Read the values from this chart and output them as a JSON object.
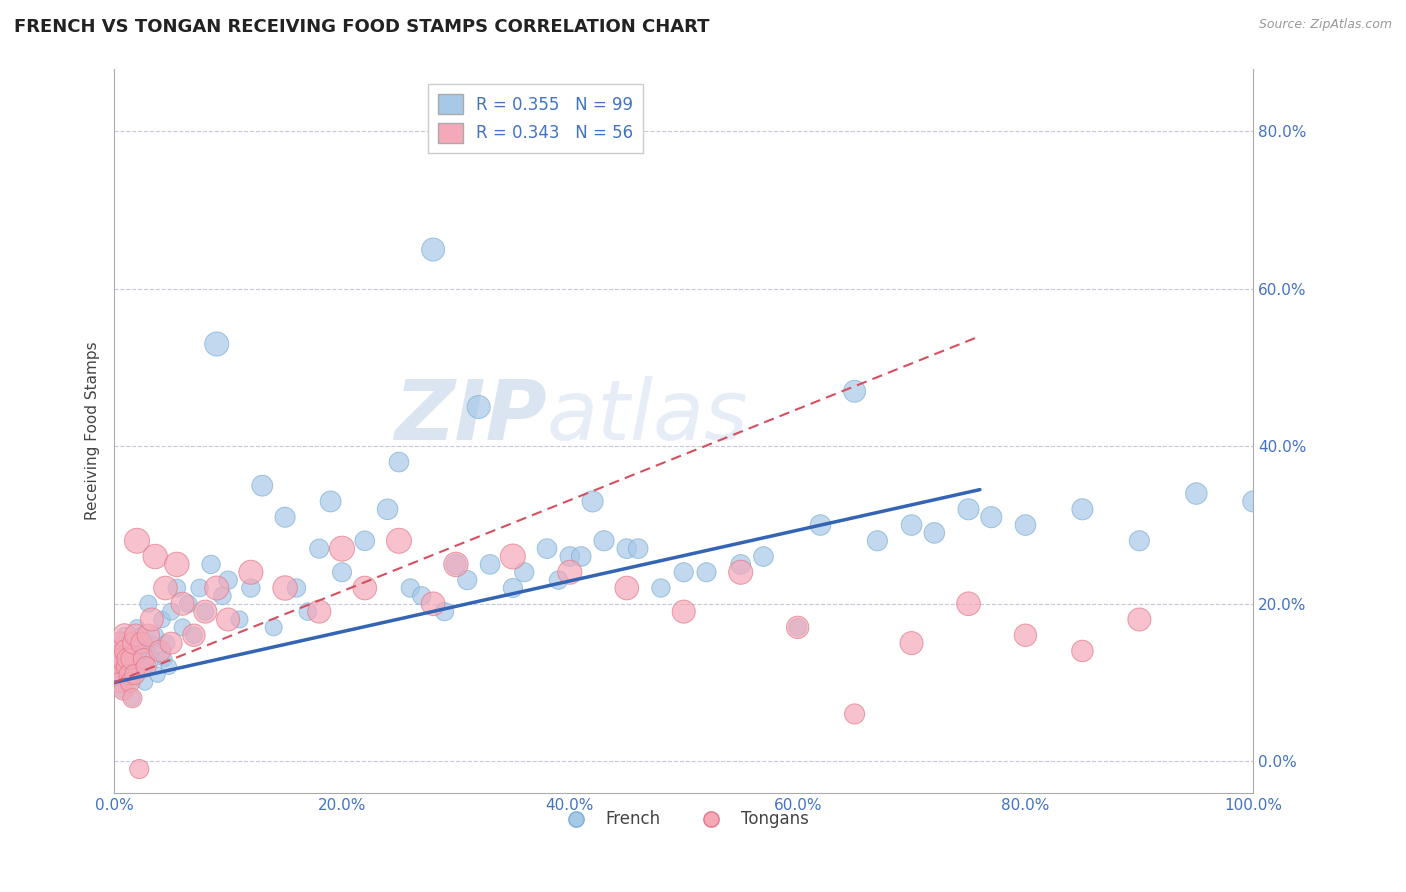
{
  "title": "FRENCH VS TONGAN RECEIVING FOOD STAMPS CORRELATION CHART",
  "source_text": "Source: ZipAtlas.com",
  "ylabel": "Receiving Food Stamps",
  "xlim": [
    0.0,
    1.0
  ],
  "ylim": [
    -0.04,
    0.88
  ],
  "xtick_vals": [
    0.0,
    0.2,
    0.4,
    0.6,
    0.8,
    1.0
  ],
  "xtick_labels": [
    "0.0%",
    "20.0%",
    "40.0%",
    "60.0%",
    "80.0%",
    "100.0%"
  ],
  "ytick_vals": [
    0.0,
    0.2,
    0.4,
    0.6,
    0.8
  ],
  "ytick_labels": [
    "0.0%",
    "20.0%",
    "40.0%",
    "60.0%",
    "80.0%"
  ],
  "french_color": "#a8c8e8",
  "french_edge": "#7aafd4",
  "tongan_color": "#f4a8b8",
  "tongan_edge": "#e07888",
  "french_R": 0.355,
  "french_N": 99,
  "tongan_R": 0.343,
  "tongan_N": 56,
  "french_line_color": "#3464b4",
  "tongan_line_color": "#d45060",
  "watermark_zip": "ZIP",
  "watermark_atlas": "atlas",
  "grid_color": "#c8c8d8",
  "french_line_x0": 0.0,
  "french_line_y0": 0.1,
  "french_line_x1": 0.76,
  "french_line_y1": 0.345,
  "tongan_line_x0": 0.0,
  "tongan_line_y0": 0.1,
  "tongan_line_x1": 0.76,
  "tongan_line_y1": 0.54,
  "french_scatter_x": [
    0.001,
    0.002,
    0.003,
    0.004,
    0.005,
    0.006,
    0.007,
    0.008,
    0.009,
    0.01,
    0.011,
    0.012,
    0.013,
    0.014,
    0.015,
    0.016,
    0.017,
    0.018,
    0.019,
    0.02,
    0.021,
    0.022,
    0.023,
    0.024,
    0.025,
    0.026,
    0.027,
    0.028,
    0.029,
    0.03,
    0.032,
    0.034,
    0.036,
    0.038,
    0.04,
    0.042,
    0.044,
    0.046,
    0.048,
    0.05,
    0.055,
    0.06,
    0.065,
    0.07,
    0.075,
    0.08,
    0.085,
    0.09,
    0.095,
    0.1,
    0.11,
    0.12,
    0.13,
    0.14,
    0.15,
    0.16,
    0.17,
    0.18,
    0.19,
    0.2,
    0.22,
    0.24,
    0.26,
    0.28,
    0.3,
    0.32,
    0.35,
    0.38,
    0.4,
    0.42,
    0.45,
    0.5,
    0.55,
    0.6,
    0.65,
    0.7,
    0.75,
    0.8,
    0.85,
    0.9,
    0.95,
    1.0,
    0.25,
    0.27,
    0.29,
    0.31,
    0.33,
    0.36,
    0.39,
    0.41,
    0.43,
    0.46,
    0.48,
    0.52,
    0.57,
    0.62,
    0.67,
    0.72,
    0.77
  ],
  "french_scatter_y": [
    0.12,
    0.14,
    0.11,
    0.13,
    0.1,
    0.15,
    0.12,
    0.09,
    0.16,
    0.13,
    0.11,
    0.14,
    0.12,
    0.1,
    0.13,
    0.08,
    0.15,
    0.12,
    0.11,
    0.17,
    0.13,
    0.14,
    0.12,
    0.16,
    0.15,
    0.13,
    0.1,
    0.12,
    0.14,
    0.2,
    0.15,
    0.13,
    0.16,
    0.11,
    0.14,
    0.18,
    0.13,
    0.15,
    0.12,
    0.19,
    0.22,
    0.17,
    0.2,
    0.16,
    0.22,
    0.19,
    0.25,
    0.53,
    0.21,
    0.23,
    0.18,
    0.22,
    0.35,
    0.17,
    0.31,
    0.22,
    0.19,
    0.27,
    0.33,
    0.24,
    0.28,
    0.32,
    0.22,
    0.65,
    0.25,
    0.45,
    0.22,
    0.27,
    0.26,
    0.33,
    0.27,
    0.24,
    0.25,
    0.17,
    0.47,
    0.3,
    0.32,
    0.3,
    0.32,
    0.28,
    0.34,
    0.33,
    0.38,
    0.21,
    0.19,
    0.23,
    0.25,
    0.24,
    0.23,
    0.26,
    0.28,
    0.27,
    0.22,
    0.24,
    0.26,
    0.3,
    0.28,
    0.29,
    0.31
  ],
  "french_scatter_s": [
    25,
    25,
    25,
    25,
    25,
    25,
    25,
    25,
    25,
    28,
    25,
    25,
    25,
    25,
    25,
    25,
    25,
    25,
    25,
    25,
    25,
    25,
    25,
    25,
    28,
    25,
    25,
    25,
    25,
    30,
    28,
    25,
    28,
    25,
    28,
    28,
    25,
    28,
    25,
    30,
    32,
    30,
    32,
    28,
    32,
    30,
    35,
    60,
    32,
    35,
    30,
    35,
    45,
    30,
    42,
    35,
    32,
    38,
    45,
    38,
    40,
    44,
    35,
    55,
    42,
    55,
    38,
    40,
    40,
    46,
    40,
    38,
    40,
    32,
    50,
    44,
    46,
    44,
    46,
    42,
    48,
    46,
    40,
    35,
    35,
    38,
    40,
    38,
    35,
    40,
    42,
    40,
    35,
    38,
    40,
    44,
    42,
    44,
    46
  ],
  "tongan_scatter_x": [
    0.001,
    0.002,
    0.003,
    0.004,
    0.005,
    0.006,
    0.007,
    0.008,
    0.009,
    0.01,
    0.011,
    0.012,
    0.013,
    0.014,
    0.015,
    0.016,
    0.017,
    0.018,
    0.019,
    0.02,
    0.022,
    0.024,
    0.026,
    0.028,
    0.03,
    0.033,
    0.036,
    0.04,
    0.045,
    0.05,
    0.055,
    0.06,
    0.07,
    0.08,
    0.09,
    0.1,
    0.12,
    0.15,
    0.18,
    0.2,
    0.22,
    0.25,
    0.28,
    0.3,
    0.35,
    0.4,
    0.45,
    0.5,
    0.55,
    0.6,
    0.65,
    0.7,
    0.75,
    0.8,
    0.85,
    0.9
  ],
  "tongan_scatter_y": [
    0.14,
    0.13,
    0.12,
    0.11,
    0.1,
    0.15,
    0.13,
    0.09,
    0.16,
    0.14,
    0.12,
    0.13,
    0.11,
    0.1,
    0.13,
    0.08,
    0.15,
    0.11,
    0.16,
    0.28,
    -0.01,
    0.15,
    0.13,
    0.12,
    0.16,
    0.18,
    0.26,
    0.14,
    0.22,
    0.15,
    0.25,
    0.2,
    0.16,
    0.19,
    0.22,
    0.18,
    0.24,
    0.22,
    0.19,
    0.27,
    0.22,
    0.28,
    0.2,
    0.25,
    0.26,
    0.24,
    0.22,
    0.19,
    0.24,
    0.17,
    0.06,
    0.15,
    0.2,
    0.16,
    0.14,
    0.18
  ],
  "tongan_scatter_s": [
    55,
    50,
    48,
    45,
    42,
    52,
    48,
    40,
    55,
    52,
    45,
    48,
    42,
    40,
    45,
    38,
    50,
    42,
    52,
    65,
    38,
    48,
    45,
    42,
    52,
    55,
    62,
    48,
    58,
    50,
    62,
    55,
    52,
    55,
    60,
    55,
    60,
    62,
    55,
    65,
    58,
    65,
    58,
    62,
    65,
    60,
    58,
    55,
    60,
    52,
    42,
    55,
    58,
    52,
    48,
    55
  ]
}
